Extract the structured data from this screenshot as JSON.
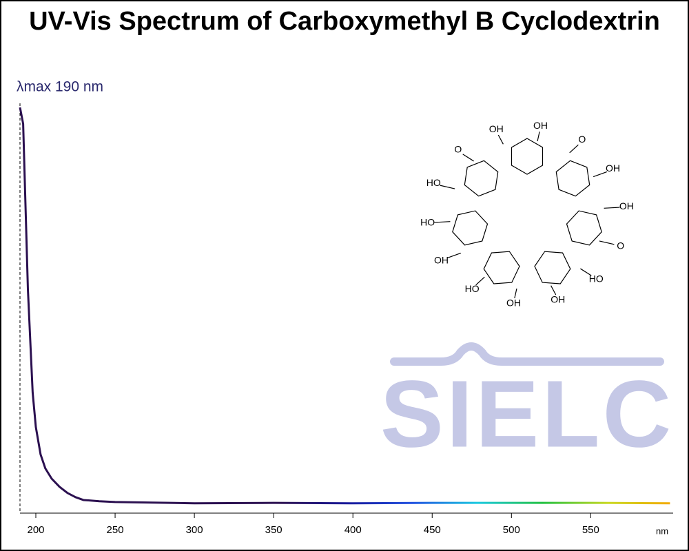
{
  "chart_data": {
    "type": "line",
    "title": "UV-Vis Spectrum of Carboxymethyl B Cyclodextrin",
    "annotation": "λmax  190 nm",
    "lambda_max": 190,
    "xlabel": "nm",
    "x": [
      190,
      192,
      195,
      198,
      200,
      203,
      206,
      210,
      215,
      220,
      225,
      230,
      240,
      250,
      300,
      350,
      400,
      450,
      500,
      550,
      600
    ],
    "series": [
      {
        "values": [
          0.99,
          0.95,
          0.546,
          0.294,
          0.21,
          0.143,
          0.109,
          0.084,
          0.064,
          0.049,
          0.039,
          0.032,
          0.029,
          0.027,
          0.024,
          0.025,
          0.024,
          0.025,
          0.025,
          0.025,
          0.024
        ],
        "colors": [
          "#2b1050",
          "#2b1050",
          "#2b1050",
          "#2b1050",
          "#2b1050",
          "#1a1a9a",
          "#1f4fe0",
          "#18c8e0",
          "#20c040",
          "#c8d820",
          "#f5a800"
        ]
      }
    ],
    "xlim": [
      190,
      602
    ],
    "xticks": [
      200,
      250,
      300,
      350,
      400,
      450,
      500,
      550
    ],
    "watermark": "SIELC",
    "structure_labels": [
      "OH",
      "O",
      "OH",
      "OH",
      "O",
      "HO",
      "OH",
      "OH",
      "HO",
      "OH",
      "HO",
      "HO",
      "O",
      "OH"
    ]
  }
}
